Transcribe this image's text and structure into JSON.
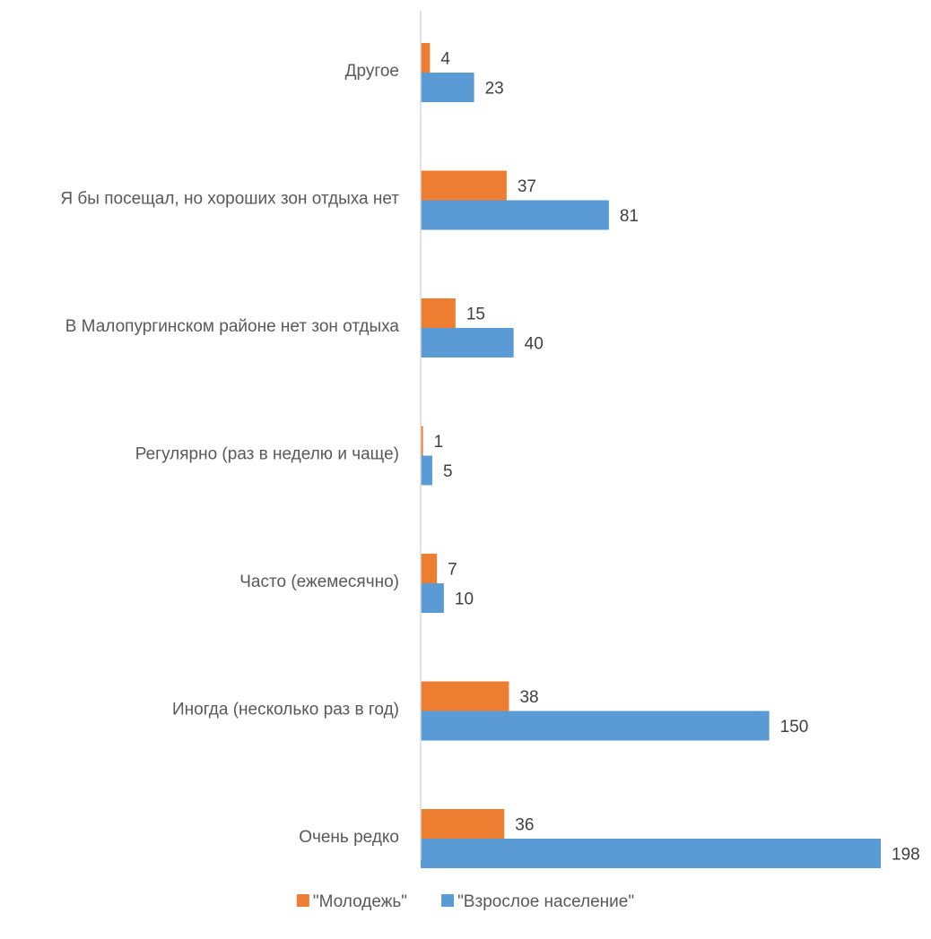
{
  "chart_data": {
    "type": "bar",
    "orientation": "horizontal",
    "categories": [
      "Другое",
      "Я бы посещал, но хороших зон отдыха нет",
      "В Малопургинском районе нет зон отдыха",
      "Регулярно (раз в неделю и чаще)",
      "Часто (ежемесячно)",
      "Иногда (несколько раз в год)",
      "Очень редко"
    ],
    "series": [
      {
        "name": "\"Молодежь\"",
        "color": "#ed7d31",
        "values": [
          4,
          37,
          15,
          1,
          7,
          38,
          36
        ]
      },
      {
        "name": "\"Взрослое население\"",
        "color": "#5b9bd5",
        "values": [
          23,
          81,
          40,
          5,
          10,
          150,
          198
        ]
      }
    ],
    "xlim": [
      0,
      198
    ],
    "grid": false,
    "data_labels": true,
    "legend_position": "bottom"
  }
}
